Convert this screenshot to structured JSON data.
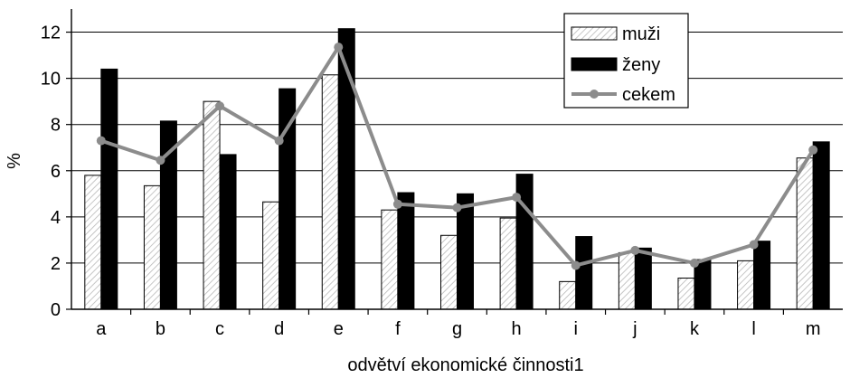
{
  "chart_data": {
    "type": "bar",
    "categories": [
      "a",
      "b",
      "c",
      "d",
      "e",
      "f",
      "g",
      "h",
      "i",
      "j",
      "k",
      "l",
      "m"
    ],
    "series": [
      {
        "name": "muži",
        "kind": "bar",
        "values": [
          5.8,
          5.35,
          9.0,
          4.65,
          10.15,
          4.3,
          3.2,
          3.95,
          1.2,
          2.45,
          1.35,
          2.1,
          6.55
        ]
      },
      {
        "name": "ženy",
        "kind": "bar",
        "values": [
          10.4,
          8.15,
          6.7,
          9.55,
          12.15,
          5.05,
          5.0,
          5.85,
          3.15,
          2.65,
          2.15,
          2.95,
          7.25
        ]
      },
      {
        "name": "cekem",
        "kind": "line",
        "values": [
          7.3,
          6.45,
          8.8,
          7.3,
          11.35,
          4.55,
          4.4,
          4.85,
          1.9,
          2.55,
          2.0,
          2.8,
          6.9
        ]
      }
    ],
    "xlabel": "odvětví ekonomické činnosti1",
    "ylabel": "%",
    "ylim": [
      0,
      13
    ],
    "yticks": [
      0,
      2,
      4,
      6,
      8,
      10,
      12
    ],
    "grid": true,
    "legend_position": "top-right",
    "colors": {
      "muzi": "#f0f0f0",
      "zeny": "#000000",
      "cekem": "#8c8c8c",
      "grid": "#000000"
    }
  }
}
